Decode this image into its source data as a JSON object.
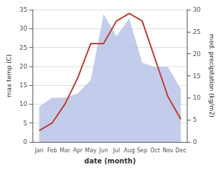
{
  "chart_data": {
    "type": "line",
    "xlabel": "date (month)",
    "ylabel": "max temp (C)",
    "y2label": "med. precipitation (kg/m2)",
    "categories": [
      "Jan",
      "Feb",
      "Mar",
      "Apr",
      "May",
      "Jun",
      "Jul",
      "Aug",
      "Sep",
      "Oct",
      "Nov",
      "Dec"
    ],
    "series": [
      {
        "type": "area",
        "axis": "y2",
        "color": "#b8c4e8",
        "values": [
          8,
          10,
          10,
          11,
          14,
          29,
          24,
          28,
          18,
          17,
          17,
          12
        ]
      },
      {
        "type": "line",
        "color": "#c0392b",
        "values": [
          3,
          5,
          10,
          17,
          26,
          26,
          32,
          34,
          32,
          22,
          12,
          6
        ]
      }
    ],
    "ylim": [
      0,
      35
    ],
    "yticks": [
      0,
      5,
      10,
      15,
      20,
      25,
      30,
      35
    ],
    "y2lim": [
      0,
      30
    ],
    "y2ticks": [
      0,
      5,
      10,
      15,
      20,
      25,
      30
    ],
    "grid": true
  }
}
